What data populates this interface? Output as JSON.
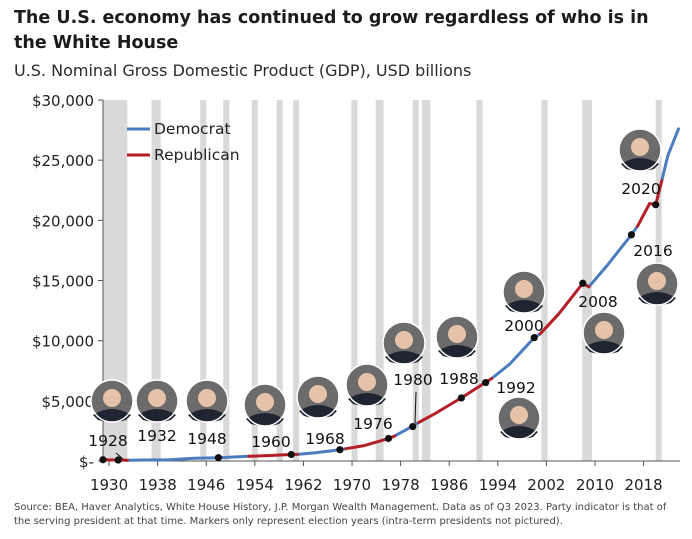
{
  "title": "The U.S. economy has continued to grow regardless of who is in the White House",
  "subtitle": "U.S. Nominal Gross Domestic Product (GDP), USD billions",
  "source": "Source: BEA, Haver Analytics, White House History, J.P. Morgan Wealth Management. Data as of Q3 2023. Party indicator is that of the serving president at that time. Markers only represent election years (intra-term presidents not pictured).",
  "colors": {
    "democrat": "#4a7cc0",
    "republican": "#b51e24",
    "band": "#d9d9d9",
    "axis": "#555555"
  },
  "chart_data": {
    "type": "line",
    "title": "U.S. Nominal Gross Domestic Product (GDP), USD billions",
    "xlabel": "",
    "ylabel": "",
    "xlim": [
      1929,
      2024
    ],
    "ylim": [
      0,
      30000
    ],
    "x_ticks": [
      1930,
      1938,
      1946,
      1954,
      1962,
      1970,
      1978,
      1986,
      1994,
      2002,
      2010,
      2018
    ],
    "y_ticks": [
      {
        "value": 0,
        "label": "$-"
      },
      {
        "value": 5000,
        "label": "$5,000"
      },
      {
        "value": 10000,
        "label": "$10,000"
      },
      {
        "value": 15000,
        "label": "$15,000"
      },
      {
        "value": 20000,
        "label": "$20,000"
      },
      {
        "value": 25000,
        "label": "$25,000"
      },
      {
        "value": 30000,
        "label": "$30,000"
      }
    ],
    "legend": {
      "position": "top-left",
      "entries": [
        "Democrat",
        "Republican"
      ]
    },
    "recession_bands": [
      [
        1929,
        1933
      ],
      [
        1937,
        1938.5
      ],
      [
        1945,
        1946
      ],
      [
        1948.8,
        1949.8
      ],
      [
        1953.5,
        1954.4
      ],
      [
        1957.6,
        1958.4
      ],
      [
        1960.3,
        1961.2
      ],
      [
        1969.9,
        1970.9
      ],
      [
        1973.9,
        1975.2
      ],
      [
        1980,
        1980.6
      ],
      [
        1981.5,
        1982.9
      ],
      [
        1990.5,
        1991.3
      ],
      [
        2001.2,
        2001.9
      ],
      [
        2007.9,
        2009.5
      ],
      [
        2020,
        2020.6
      ]
    ],
    "series": [
      {
        "name": "Democrat",
        "segments": [
          {
            "x": [
              1933,
              1936,
              1940,
              1944,
              1948,
              1953
            ],
            "y": [
              57,
              85,
              103,
              228,
              275,
              388
            ]
          },
          {
            "x": [
              1961,
              1964,
              1968,
              1969
            ],
            "y": [
              550,
              685,
              940,
              1020
            ]
          },
          {
            "x": [
              1977,
              1979,
              1981
            ],
            "y": [
              2070,
              2630,
              3210
            ]
          },
          {
            "x": [
              1993,
              1996,
              2000,
              2001
            ],
            "y": [
              6860,
              8070,
              10250,
              10580
            ]
          },
          {
            "x": [
              2009,
              2012,
              2016,
              2017
            ],
            "y": [
              14480,
              16250,
              18800,
              19500
            ]
          },
          {
            "x": [
              2021,
              2022,
              2023.75
            ],
            "y": [
              23300,
              25400,
              27600
            ]
          }
        ]
      },
      {
        "name": "Republican",
        "segments": [
          {
            "x": [
              1929,
              1933
            ],
            "y": [
              105,
              57
            ]
          },
          {
            "x": [
              1953,
              1956,
              1960,
              1961
            ],
            "y": [
              388,
              450,
              540,
              550
            ]
          },
          {
            "x": [
              1969,
              1972,
              1976,
              1977
            ],
            "y": [
              1020,
              1280,
              1870,
              2070
            ]
          },
          {
            "x": [
              1981,
              1984,
              1988,
              1993
            ],
            "y": [
              3210,
              4040,
              5240,
              6860
            ]
          },
          {
            "x": [
              2001,
              2004,
              2008,
              2009
            ],
            "y": [
              10580,
              12200,
              14770,
              14480
            ]
          },
          {
            "x": [
              2017,
              2019,
              2020,
              2021
            ],
            "y": [
              19500,
              21400,
              21300,
              23300
            ]
          }
        ]
      }
    ],
    "election_markers": [
      {
        "year": 1928,
        "x": 1929,
        "y": 105
      },
      {
        "year": 1932,
        "x": 1931.5,
        "y": 80
      },
      {
        "year": 1948,
        "x": 1948,
        "y": 275
      },
      {
        "year": 1960,
        "x": 1960,
        "y": 540
      },
      {
        "year": 1968,
        "x": 1968,
        "y": 940
      },
      {
        "year": 1976,
        "x": 1976,
        "y": 1870
      },
      {
        "year": 1980,
        "x": 1980,
        "y": 2860
      },
      {
        "year": 1988,
        "x": 1988,
        "y": 5240
      },
      {
        "year": 1992,
        "x": 1992,
        "y": 6520
      },
      {
        "year": 2000,
        "x": 2000,
        "y": 10250
      },
      {
        "year": 2008,
        "x": 2008,
        "y": 14770
      },
      {
        "year": 2016,
        "x": 2016,
        "y": 18800
      },
      {
        "year": 2020,
        "x": 2020,
        "y": 21300
      }
    ]
  }
}
